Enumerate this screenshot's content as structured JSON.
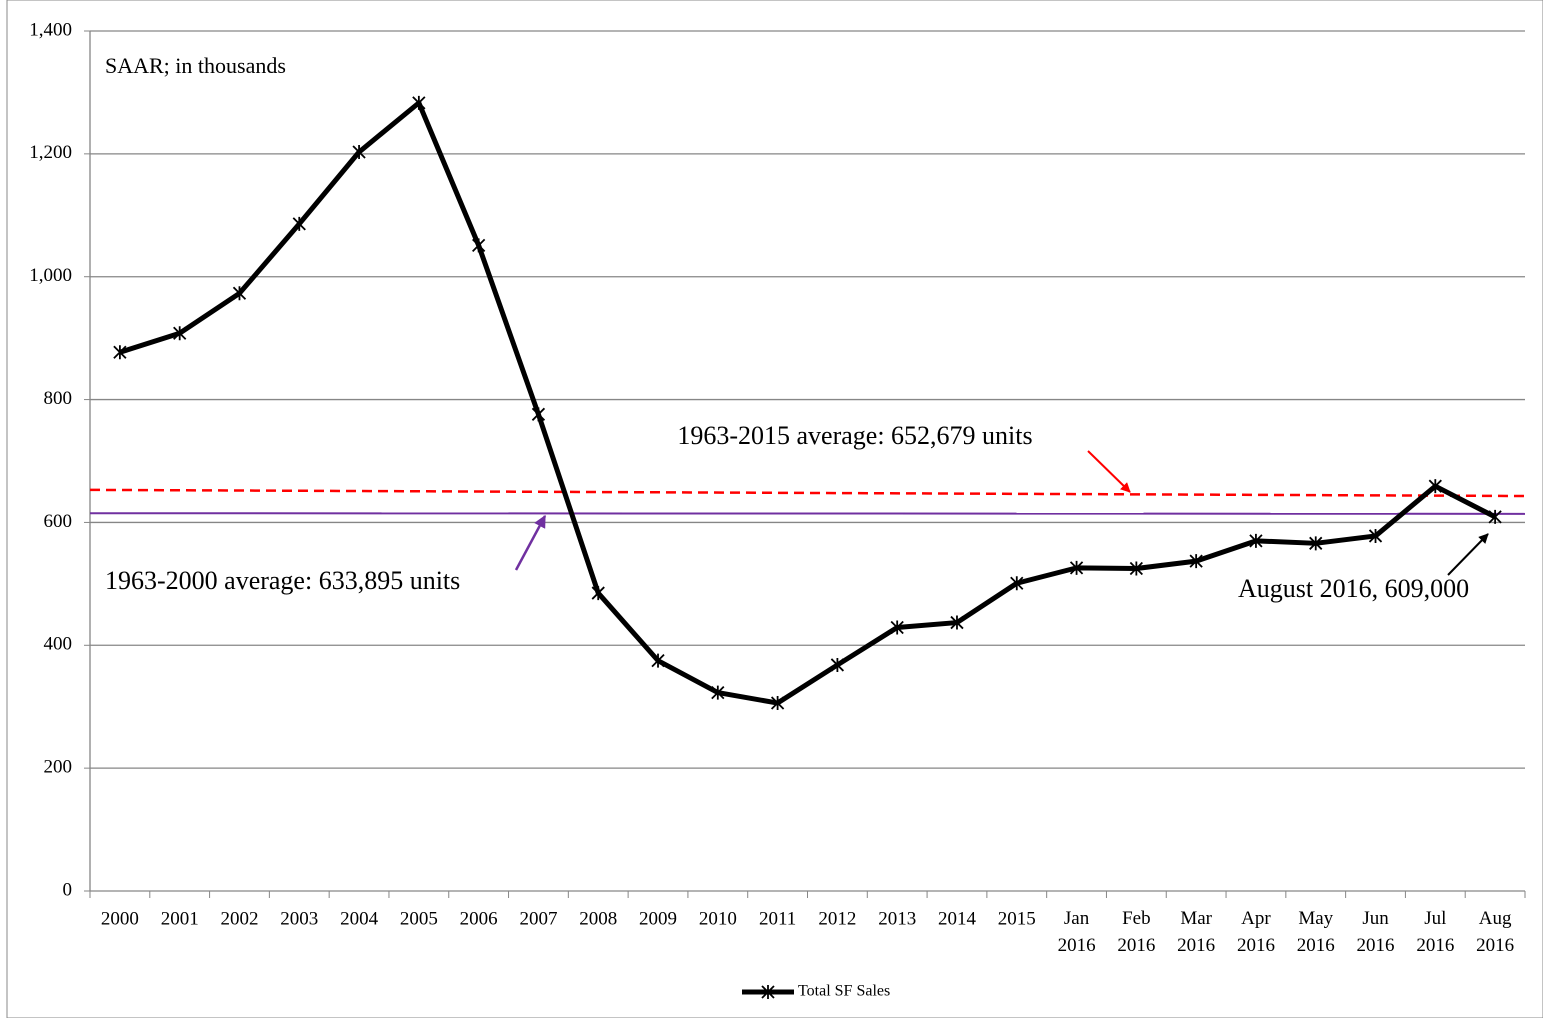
{
  "chart_data": {
    "type": "line",
    "categories": [
      "2000",
      "2001",
      "2002",
      "2003",
      "2004",
      "2005",
      "2006",
      "2007",
      "2008",
      "2009",
      "2010",
      "2011",
      "2012",
      "2013",
      "2014",
      "2015",
      "Jan 2016",
      "Feb 2016",
      "Mar 2016",
      "Apr 2016",
      "May 2016",
      "Jun 2016",
      "Jul 2016",
      "Aug 2016"
    ],
    "series": [
      {
        "name": "Total SF Sales",
        "color": "#000000",
        "values": [
          877,
          908,
          973,
          1086,
          1203,
          1283,
          1051,
          776,
          485,
          375,
          323,
          306,
          368,
          429,
          437,
          501,
          526,
          525,
          537,
          570,
          566,
          578,
          659,
          609
        ]
      }
    ],
    "ylim": [
      0,
      1400
    ],
    "yticks": [
      0,
      200,
      400,
      600,
      800,
      {
        "value": 1000,
        "label": "1,000"
      },
      {
        "value": 1200,
        "label": "1,200"
      },
      {
        "value": 1400,
        "label": "1,400"
      }
    ],
    "grid": true,
    "legend": "bottom",
    "reference_lines": [
      {
        "label": "1963-2015 average: 652,679 units",
        "color": "#ff0000",
        "style": "dashed",
        "values": [
          653,
          643
        ]
      },
      {
        "label": "1963-2000 average: 633,895 units",
        "color": "#7030a0",
        "style": "solid",
        "values": [
          615,
          614
        ]
      }
    ],
    "annotations": [
      "SAAR; in thousands",
      "August 2016, 609,000"
    ]
  }
}
